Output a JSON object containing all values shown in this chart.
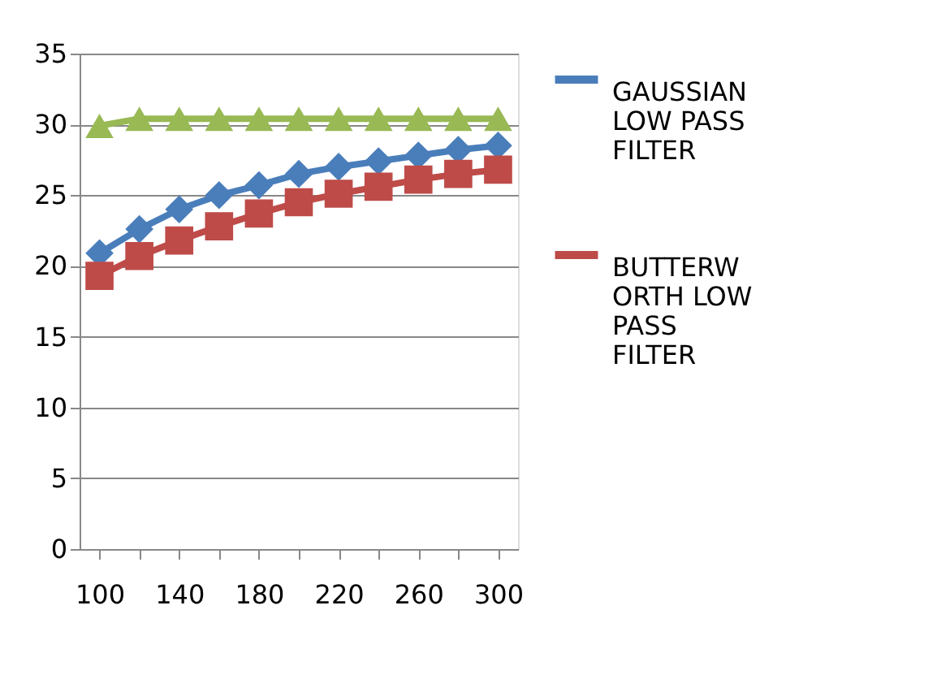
{
  "chart_data": {
    "type": "line",
    "categories": [
      "100",
      null,
      "140",
      null,
      "180",
      null,
      "220",
      null,
      "260",
      null,
      "300"
    ],
    "series": [
      {
        "name": "GAUSSIAN LOW PASS FILTER",
        "color": "#4a7ebb",
        "marker": "diamond",
        "values": [
          20.9,
          22.6,
          24.0,
          25.0,
          25.7,
          26.5,
          27.0,
          27.4,
          27.8,
          28.2,
          28.5
        ]
      },
      {
        "name": "BUTTERWORTH LOW PASS FILTER",
        "color": "#be4b48",
        "marker": "square",
        "values": [
          19.3,
          20.7,
          21.8,
          22.8,
          23.7,
          24.5,
          25.1,
          25.6,
          26.1,
          26.5,
          26.8
        ]
      },
      {
        "color": "#98b954",
        "marker": "triangle",
        "values": [
          29.9,
          30.4,
          30.4,
          30.4,
          30.4,
          30.4,
          30.4,
          30.4,
          30.4,
          30.4,
          30.4
        ]
      }
    ],
    "ylim": [
      0,
      35
    ],
    "yticks": [
      0,
      5,
      10,
      15,
      20,
      25,
      30,
      35
    ],
    "grid": "y",
    "legend": "right",
    "line_style": "solid"
  }
}
